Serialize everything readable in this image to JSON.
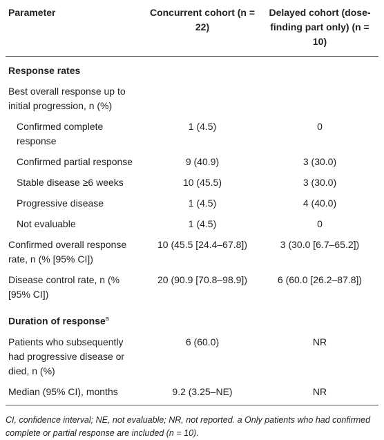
{
  "table": {
    "header": [
      "Parameter",
      "Concurrent cohort (n = 22)",
      "Delayed cohort (dose-finding part only) (n = 10)"
    ],
    "rows": [
      {
        "section": "Response rates"
      },
      {
        "cells": [
          "Best overall response up to initial progression, n (%)",
          "",
          ""
        ]
      },
      {
        "cells": [
          "Confirmed complete response",
          "1 (4.5)",
          "0"
        ],
        "indent": true
      },
      {
        "cells": [
          "Confirmed partial response",
          "9 (40.9)",
          "3 (30.0)"
        ],
        "indent": true
      },
      {
        "cells": [
          "Stable disease ≥6 weeks",
          "10 (45.5)",
          "3 (30.0)"
        ],
        "indent": true
      },
      {
        "cells": [
          "Progressive disease",
          "1 (4.5)",
          "4 (40.0)"
        ],
        "indent": true
      },
      {
        "cells": [
          "Not evaluable",
          "1 (4.5)",
          "0"
        ],
        "indent": true
      },
      {
        "cells": [
          "Confirmed overall response rate, n (% [95% CI])",
          "10 (45.5 [24.4–67.8])",
          "3 (30.0 [6.7–65.2])"
        ]
      },
      {
        "cells": [
          "Disease control rate, n (% [95% CI])",
          "20 (90.9 [70.8–98.9])",
          "6 (60.0 [26.2–87.8])"
        ]
      },
      {
        "section": "Duration of response",
        "sup": "a"
      },
      {
        "cells": [
          "Patients who subsequently had progressive disease or died, n (%)",
          "6 (60.0)",
          "NR"
        ]
      },
      {
        "cells": [
          "Median (95% CI), months",
          "9.2 (3.25–NE)",
          "NR"
        ]
      }
    ]
  },
  "footnote": "CI, confidence interval; NE, not evaluable; NR, not reported. a Only patients who had confirmed complete or partial response are included (n = 10)."
}
